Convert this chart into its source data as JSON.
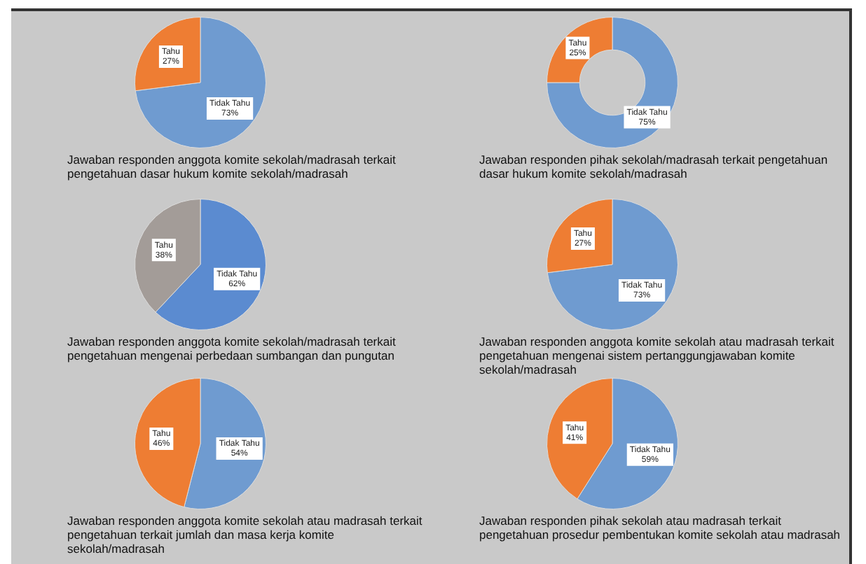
{
  "chart_data": [
    {
      "type": "pie",
      "title": "Jawaban responden anggota komite sekolah/madrasah terkait pengetahuan dasar hukum komite sekolah/madrasah",
      "categories": [
        "Tidak Tahu",
        "Tahu"
      ],
      "values": [
        73,
        27
      ],
      "colors": [
        "#6f9bd0",
        "#ee7d33"
      ],
      "value_labels": [
        "73%",
        "27%"
      ],
      "legend": false
    },
    {
      "type": "donut",
      "title": "Jawaban responden pihak sekolah/madrasah terkait pengetahuan dasar hukum komite sekolah/madrasah",
      "categories": [
        "Tidak Tahu",
        "Tahu"
      ],
      "values": [
        75,
        25
      ],
      "colors": [
        "#6f9bd0",
        "#ee7d33"
      ],
      "value_labels": [
        "75%",
        "25%"
      ],
      "legend": false
    },
    {
      "type": "pie",
      "title": "Jawaban responden anggota komite sekolah/madrasah terkait pengetahuan mengenai perbedaan sumbangan dan pungutan",
      "categories": [
        "Tidak Tahu",
        "Tahu"
      ],
      "values": [
        62,
        38
      ],
      "colors": [
        "#5b8bd0",
        "#a39c98"
      ],
      "value_labels": [
        "62%",
        "38%"
      ],
      "legend": false
    },
    {
      "type": "pie",
      "title": "Jawaban responden anggota komite sekolah atau madrasah terkait pengetahuan mengenai sistem pertanggungjawaban komite sekolah/madrasah",
      "categories": [
        "Tidak Tahu",
        "Tahu"
      ],
      "values": [
        73,
        27
      ],
      "colors": [
        "#6f9bd0",
        "#ee7d33"
      ],
      "value_labels": [
        "73%",
        "27%"
      ],
      "legend": false
    },
    {
      "type": "pie",
      "title": "Jawaban responden anggota komite sekolah atau madrasah terkait pengetahuan terkait jumlah dan masa kerja komite sekolah/madrasah",
      "categories": [
        "Tidak Tahu",
        "Tahu"
      ],
      "values": [
        54,
        46
      ],
      "colors": [
        "#6f9bd0",
        "#ee7d33"
      ],
      "value_labels": [
        "54%",
        "46%"
      ],
      "legend": false
    },
    {
      "type": "pie",
      "title": "Jawaban responden pihak sekolah atau madrasah terkait pengetahuan prosedur pembentukan komite sekolah atau madrasah",
      "categories": [
        "Tidak Tahu",
        "Tahu"
      ],
      "values": [
        59,
        41
      ],
      "colors": [
        "#6f9bd0",
        "#ee7d33"
      ],
      "value_labels": [
        "59%",
        "41%"
      ],
      "legend": false
    }
  ]
}
